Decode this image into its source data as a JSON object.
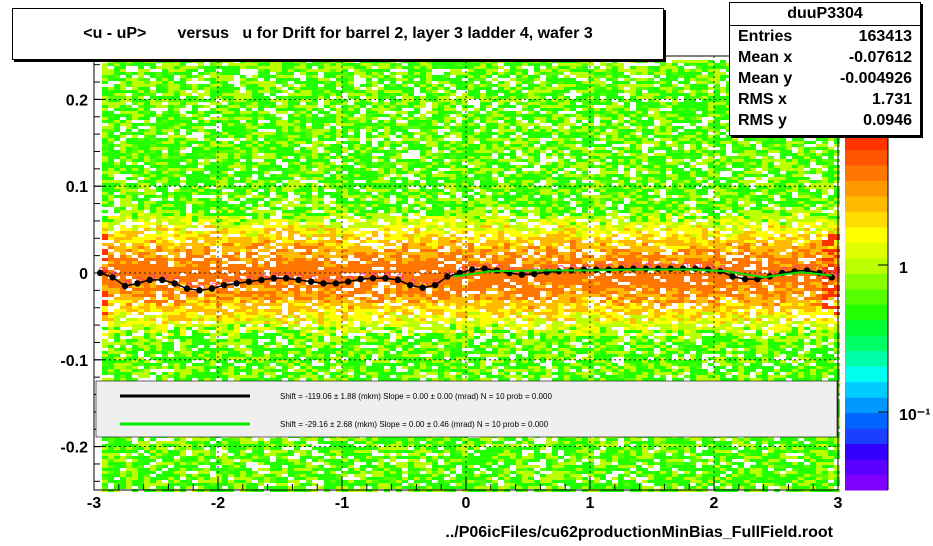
{
  "title": "<u - uP>       versus   u for Drift for barrel 2, layer 3 ladder 4, wafer 3",
  "footer": "../P06icFiles/cu62productionMinBias_FullField.root",
  "stats": {
    "name": "duuP3304",
    "rows": [
      {
        "label": "Entries",
        "value": "163413"
      },
      {
        "label": "Mean x",
        "value": "-0.07612"
      },
      {
        "label": "Mean y",
        "value": "-0.004926"
      },
      {
        "label": "RMS x",
        "value": "1.731"
      },
      {
        "label": "RMS y",
        "value": "0.0946"
      }
    ]
  },
  "legend": [
    {
      "color": "#000000",
      "text": "Shift =  -119.06 ± 1.88 (mkm) Slope =     0.00 ± 0.00 (mrad)  N = 10 prob = 0.000"
    },
    {
      "color": "#00ee00",
      "text": "Shift =   -29.16 ± 2.68 (mkm) Slope =     0.00 ± 0.46 (mrad)  N = 10 prob = 0.000"
    }
  ],
  "colorbar": {
    "labels": [
      "1",
      "10⁻¹"
    ],
    "colors": [
      "#7f00ff",
      "#5a00ff",
      "#3300ff",
      "#1a3fff",
      "#0066ff",
      "#0099ff",
      "#00ccff",
      "#00ffee",
      "#00ffaa",
      "#00ff66",
      "#00ff33",
      "#22ff00",
      "#55ff00",
      "#88ff00",
      "#bbff00",
      "#ddff00",
      "#ffff00",
      "#ffdd00",
      "#ffbb00",
      "#ff9900",
      "#ff7700",
      "#ff5500",
      "#ff3300"
    ]
  },
  "chart_data": {
    "type": "heatmap",
    "title": "<u - uP>       versus   u for Drift for barrel 2, layer 3 ladder 4, wafer 3",
    "xlabel": "",
    "ylabel": "",
    "xlim": [
      -3,
      3
    ],
    "ylim": [
      -0.25,
      0.25
    ],
    "x_ticks": [
      "-3",
      "-2",
      "-1",
      "0",
      "1",
      "2",
      "3"
    ],
    "y_ticks": [
      "-0.2",
      "-0.1",
      "0",
      "0.1",
      "0.2"
    ],
    "y_tick_values": [
      -0.2,
      -0.1,
      0,
      0.1,
      0.2
    ],
    "x_tick_values": [
      -3,
      -2,
      -1,
      0,
      1,
      2,
      3
    ],
    "grid": true,
    "series": [
      {
        "kind": "profile",
        "color": "#000000",
        "x": [
          -2.95,
          -2.85,
          -2.75,
          -2.65,
          -2.55,
          -2.45,
          -2.35,
          -2.25,
          -2.15,
          -2.05,
          -1.95,
          -1.85,
          -1.75,
          -1.65,
          -1.55,
          -1.45,
          -1.35,
          -1.25,
          -1.15,
          -1.05,
          -0.95,
          -0.85,
          -0.75,
          -0.65,
          -0.55,
          -0.45,
          -0.35,
          -0.25,
          -0.15,
          -0.05,
          0.05,
          0.15,
          0.25,
          0.35,
          0.45,
          0.55,
          0.65,
          0.75,
          0.85,
          0.95,
          1.05,
          1.15,
          1.25,
          1.35,
          1.45,
          1.55,
          1.65,
          1.75,
          1.85,
          1.95,
          2.05,
          2.15,
          2.25,
          2.35,
          2.45,
          2.55,
          2.65,
          2.75,
          2.85,
          2.95
        ],
        "y": [
          0.0,
          -0.005,
          -0.015,
          -0.012,
          -0.008,
          -0.008,
          -0.012,
          -0.018,
          -0.02,
          -0.018,
          -0.014,
          -0.012,
          -0.01,
          -0.008,
          -0.006,
          -0.006,
          -0.008,
          -0.01,
          -0.012,
          -0.012,
          -0.01,
          -0.007,
          -0.006,
          -0.006,
          -0.008,
          -0.014,
          -0.017,
          -0.014,
          -0.004,
          0.0,
          0.004,
          0.005,
          0.003,
          0.0,
          -0.002,
          -0.001,
          0.001,
          0.002,
          0.003,
          0.004,
          0.004,
          0.004,
          0.005,
          0.005,
          0.005,
          0.005,
          0.005,
          0.005,
          0.005,
          0.004,
          0.002,
          -0.004,
          -0.007,
          -0.007,
          -0.004,
          0.0,
          0.002,
          0.003,
          0.0,
          -0.005
        ]
      },
      {
        "kind": "fit",
        "color": "#00dd00",
        "x": [
          -0.1,
          0.2,
          0.6,
          1.0,
          1.4,
          1.8,
          2.1,
          2.4,
          2.7,
          2.95
        ],
        "y": [
          -0.004,
          0.002,
          0.003,
          0.003,
          0.004,
          0.004,
          0.002,
          -0.005,
          0.001,
          -0.003
        ]
      }
    ]
  }
}
